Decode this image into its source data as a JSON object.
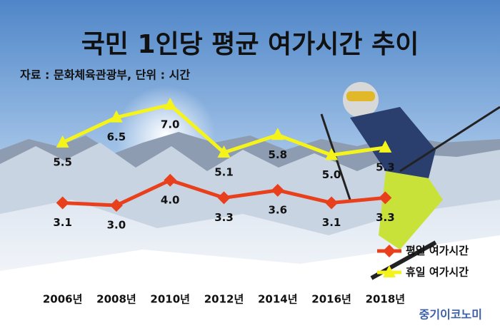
{
  "chart_data": {
    "type": "line",
    "title": "국민 1인당 평균 여가시간 추이",
    "subtitle": "자료 : 문화체육관광부, 단위 : 시간",
    "source": "중기이코노미",
    "categories": [
      "2006년",
      "2008년",
      "2010년",
      "2012년",
      "2014년",
      "2016년",
      "2018년"
    ],
    "series": [
      {
        "name": "평일 여가시간",
        "color": "#e8401c",
        "marker": "diamond",
        "values": [
          3.1,
          3.0,
          4.0,
          3.3,
          3.6,
          3.1,
          3.3
        ],
        "value_labels": [
          "3.1",
          "3.0",
          "4.0",
          "3.3",
          "3.6",
          "3.1",
          "3.3"
        ]
      },
      {
        "name": "휴일 여가시간",
        "color": "#f4f41c",
        "marker": "triangle",
        "values": [
          5.5,
          6.5,
          7.0,
          5.1,
          5.8,
          5.0,
          5.3
        ],
        "value_labels": [
          "5.5",
          "6.5",
          "7.0",
          "5.1",
          "5.8",
          "5.0",
          "5.3"
        ]
      }
    ],
    "legend": "lower right"
  }
}
